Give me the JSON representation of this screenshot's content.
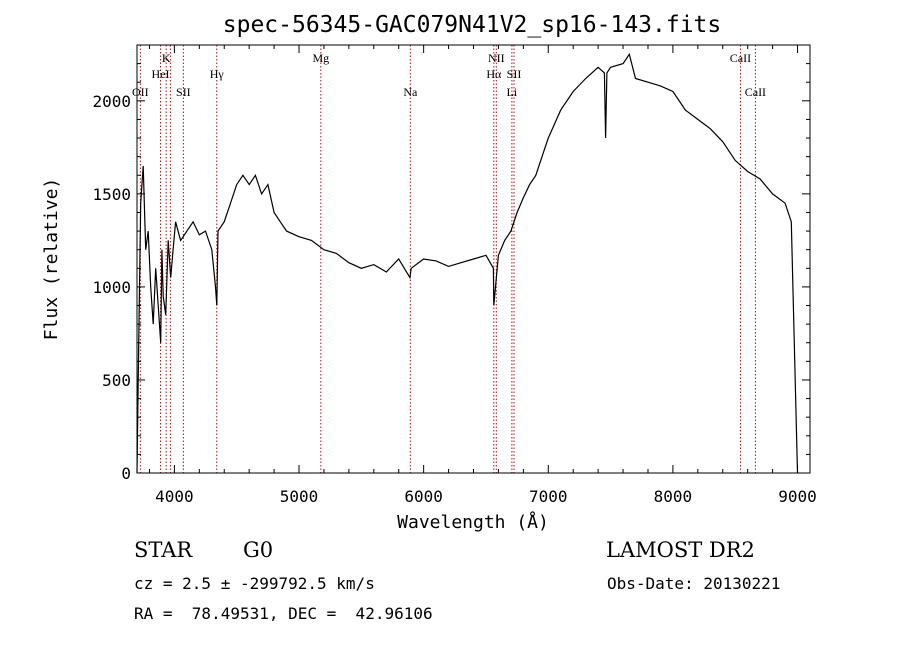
{
  "chart_data": {
    "type": "line",
    "title": "spec-56345-GAC079N41V2_sp16-143.fits",
    "xlabel": "Wavelength (Å)",
    "ylabel": "Flux (relative)",
    "xlim": [
      3700,
      9100
    ],
    "ylim": [
      0,
      2300
    ],
    "xticks": [
      4000,
      5000,
      6000,
      7000,
      8000,
      9000
    ],
    "yticks": [
      0,
      500,
      1000,
      1500,
      2000
    ],
    "grid": false,
    "series": [
      {
        "x": [
          3700,
          3710,
          3730,
          3750,
          3770,
          3790,
          3810,
          3830,
          3850,
          3870,
          3890,
          3900,
          3910,
          3930,
          3950,
          3970,
          3990,
          4010,
          4050,
          4100,
          4150,
          4200,
          4250,
          4300,
          4330,
          4340,
          4350,
          4400,
          4450,
          4500,
          4550,
          4600,
          4650,
          4700,
          4750,
          4800,
          4850,
          4900,
          5000,
          5100,
          5200,
          5300,
          5400,
          5500,
          5600,
          5700,
          5800,
          5890,
          5900,
          6000,
          6100,
          6200,
          6300,
          6400,
          6500,
          6560,
          6563,
          6600,
          6650,
          6700,
          6750,
          6800,
          6850,
          6900,
          6950,
          7000,
          7100,
          7200,
          7300,
          7400,
          7450,
          7460,
          7470,
          7500,
          7600,
          7650,
          7700,
          7800,
          7900,
          8000,
          8100,
          8200,
          8300,
          8400,
          8500,
          8600,
          8700,
          8800,
          8900,
          8950,
          9000
        ],
        "values": [
          0,
          500,
          1450,
          1650,
          1200,
          1300,
          1000,
          800,
          1100,
          900,
          700,
          1200,
          950,
          850,
          1250,
          1050,
          1200,
          1350,
          1250,
          1300,
          1350,
          1280,
          1300,
          1200,
          1000,
          900,
          1300,
          1350,
          1450,
          1550,
          1600,
          1550,
          1600,
          1500,
          1550,
          1400,
          1350,
          1300,
          1270,
          1250,
          1200,
          1180,
          1130,
          1100,
          1120,
          1080,
          1150,
          1050,
          1100,
          1150,
          1140,
          1110,
          1130,
          1150,
          1170,
          1100,
          900,
          1170,
          1250,
          1300,
          1400,
          1480,
          1550,
          1600,
          1700,
          1800,
          1950,
          2050,
          2120,
          2180,
          2150,
          1800,
          2150,
          2180,
          2200,
          2250,
          2120,
          2100,
          2080,
          2050,
          1950,
          1900,
          1850,
          1780,
          1680,
          1620,
          1580,
          1500,
          1450,
          1350,
          0
        ]
      }
    ],
    "line_labels": [
      {
        "label": "OII",
        "x": 3727,
        "row": 3
      },
      {
        "label": "K",
        "x": 3934,
        "row": 1
      },
      {
        "label": "HeI",
        "x": 3889,
        "row": 2
      },
      {
        "label": "SII",
        "x": 4072,
        "row": 3
      },
      {
        "label": "Hγ",
        "x": 4340,
        "row": 2
      },
      {
        "label": "Mg",
        "x": 5175,
        "row": 1
      },
      {
        "label": "Na",
        "x": 5893,
        "row": 3
      },
      {
        "label": "NII",
        "x": 6583,
        "row": 1
      },
      {
        "label": "Hα",
        "x": 6563,
        "row": 2
      },
      {
        "label": "SII",
        "x": 6725,
        "row": 2
      },
      {
        "label": "Li",
        "x": 6708,
        "row": 3
      },
      {
        "label": "CaII",
        "x": 8542,
        "row": 1
      },
      {
        "label": "CaII",
        "x": 8662,
        "row": 3
      }
    ],
    "marker_lines_x": [
      3727,
      3889,
      3934,
      3968,
      4072,
      4340,
      5175,
      5893,
      6563,
      6583,
      6708,
      6725,
      8542,
      8662
    ]
  },
  "info": {
    "obj_class": "STAR",
    "subclass": "G0",
    "survey": "LAMOST DR2",
    "cz": "cz = 2.5 ± -299792.5 km/s",
    "obsdate": "Obs-Date: 20130221",
    "radec": "RA =  78.49531, DEC =  42.96106"
  },
  "colors": {
    "line": "#000000",
    "marker": "#b01010"
  }
}
